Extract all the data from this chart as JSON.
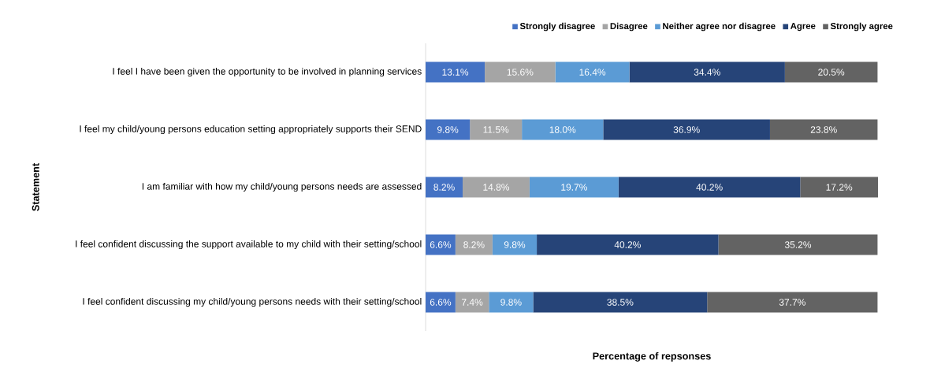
{
  "chart_data": {
    "type": "bar",
    "orientation": "horizontal",
    "stacked": true,
    "categories": [
      "I feel I have been given the opportunity to be involved in planning services",
      "I feel my child/young persons education setting appropriately supports their SEND",
      "I am familiar with how my child/young persons needs are assessed",
      "I feel confident discussing the support available to my child with their setting/school",
      "I feel confident discussing my child/young persons needs with their setting/school"
    ],
    "series": [
      {
        "name": "Strongly disagree",
        "color": "#4472c4",
        "values": [
          13.1,
          9.8,
          8.2,
          6.6,
          6.6
        ],
        "value_labels": [
          "13.1%",
          "9.8%",
          "8.2%",
          "6.6%",
          "6.6%"
        ]
      },
      {
        "name": "Disagree",
        "color": "#a5a5a5",
        "values": [
          15.6,
          11.5,
          14.8,
          8.2,
          7.4
        ],
        "value_labels": [
          "15.6%",
          "11.5%",
          "14.8%",
          "8.2%",
          "7.4%"
        ]
      },
      {
        "name": "Neither agree nor disagree",
        "color": "#5b9bd5",
        "values": [
          16.4,
          18.0,
          19.7,
          9.8,
          9.8
        ],
        "value_labels": [
          "16.4%",
          "18.0%",
          "19.7%",
          "9.8%",
          "9.8%"
        ]
      },
      {
        "name": "Agree",
        "color": "#264478",
        "values": [
          34.4,
          36.9,
          40.2,
          40.2,
          38.5
        ],
        "value_labels": [
          "34.4%",
          "36.9%",
          "40.2%",
          "40.2%",
          "38.5%"
        ]
      },
      {
        "name": "Strongly agree",
        "color": "#636363",
        "values": [
          20.5,
          23.8,
          17.2,
          35.2,
          37.7
        ],
        "value_labels": [
          "20.5%",
          "23.8%",
          "17.2%",
          "35.2%",
          "37.7%"
        ]
      }
    ],
    "xlabel": "Percentage of repsonses",
    "ylabel": "Statement",
    "legend": "top right",
    "tick_labels": "y"
  }
}
